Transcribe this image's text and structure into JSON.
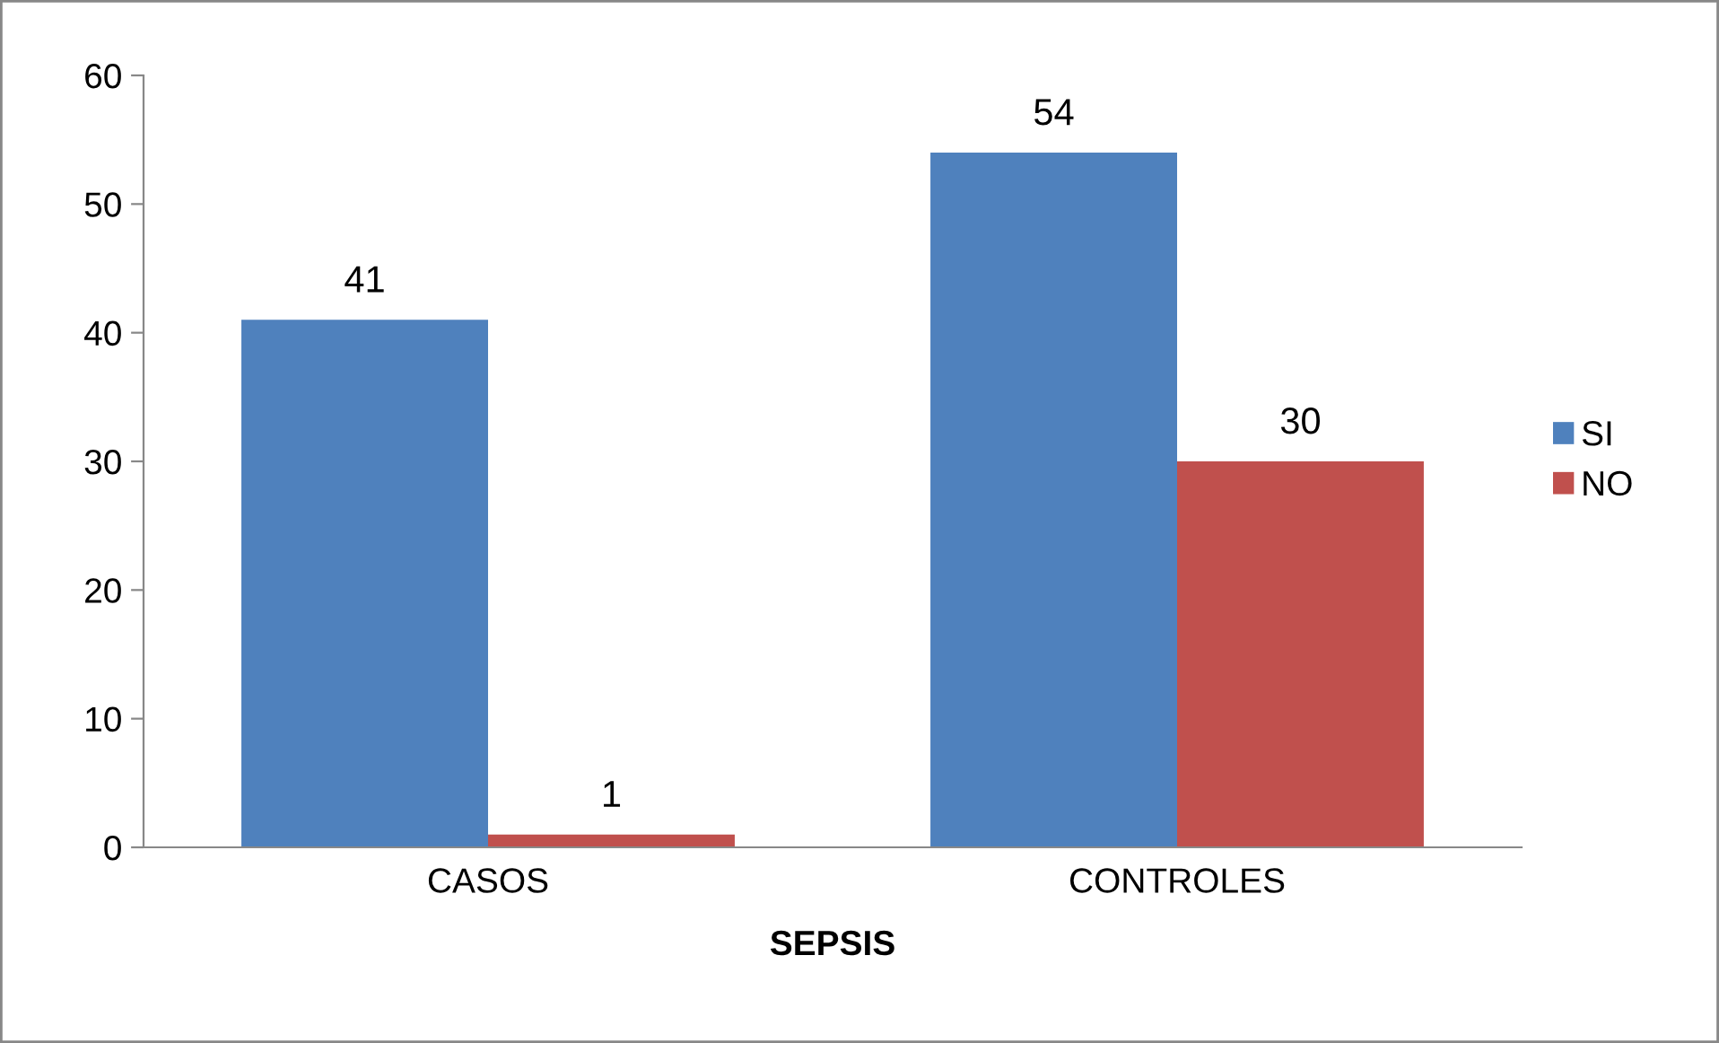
{
  "chart_data": {
    "type": "bar",
    "xlabel": "SEPSIS",
    "categories": [
      "CASOS",
      "CONTROLES"
    ],
    "series": [
      {
        "name": "SI",
        "color": "#4f81bd",
        "values": [
          41,
          54
        ]
      },
      {
        "name": "NO",
        "color": "#c0504d",
        "values": [
          1,
          30
        ]
      }
    ],
    "ylim": [
      0,
      60
    ],
    "yticks": [
      0,
      10,
      20,
      30,
      40,
      50,
      60
    ],
    "data_labels": true,
    "grid": false,
    "legend": "right"
  }
}
